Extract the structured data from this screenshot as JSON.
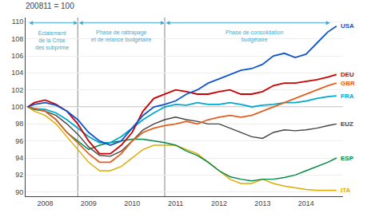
{
  "chart_data": {
    "type": "line",
    "title": "200811 = 100",
    "x": [
      2007.6,
      2007.75,
      2008.0,
      2008.25,
      2008.5,
      2008.75,
      2009.0,
      2009.25,
      2009.5,
      2009.75,
      2010.0,
      2010.25,
      2010.5,
      2010.75,
      2011.0,
      2011.25,
      2011.5,
      2011.75,
      2012.0,
      2012.25,
      2012.5,
      2012.75,
      2013.0,
      2013.25,
      2013.5,
      2013.75,
      2014.0,
      2014.25,
      2014.5,
      2014.7
    ],
    "series": [
      {
        "name": "ITA",
        "color": "#ddaa00",
        "values": [
          100,
          99.5,
          99.0,
          98.0,
          96.5,
          95.0,
          93.5,
          92.5,
          92.5,
          93.0,
          94.0,
          95.0,
          95.5,
          95.5,
          95.5,
          95.0,
          94.5,
          93.5,
          92.5,
          91.5,
          91.0,
          91.0,
          91.5,
          91.0,
          90.7,
          90.5,
          90.3,
          90.2,
          90.2,
          90.2
        ]
      },
      {
        "name": "ESP",
        "color": "#008844",
        "values": [
          100,
          99.7,
          99.5,
          98.5,
          97.0,
          96.0,
          95.0,
          95.5,
          95.8,
          96.0,
          96.2,
          96.2,
          96.0,
          95.8,
          95.5,
          94.8,
          94.3,
          93.5,
          92.5,
          91.8,
          91.5,
          91.3,
          91.5,
          91.5,
          91.7,
          92.0,
          92.5,
          93.0,
          93.5,
          94.0
        ]
      },
      {
        "name": "EUZ",
        "color": "#444444",
        "values": [
          100,
          99.8,
          99.5,
          99.0,
          98.0,
          96.8,
          95.3,
          94.3,
          94.2,
          94.8,
          96.0,
          97.3,
          98.0,
          98.5,
          98.8,
          98.5,
          98.3,
          98.0,
          98.0,
          97.5,
          97.0,
          96.5,
          96.3,
          97.0,
          97.3,
          97.2,
          97.3,
          97.5,
          97.8,
          98.0
        ]
      },
      {
        "name": "FRA",
        "color": "#00aacc",
        "values": [
          100,
          99.8,
          99.7,
          99.3,
          98.5,
          97.5,
          96.5,
          95.8,
          95.8,
          96.5,
          97.5,
          98.5,
          99.3,
          100.0,
          100.3,
          100.2,
          100.5,
          100.3,
          100.3,
          100.5,
          100.3,
          100.0,
          100.2,
          100.3,
          100.5,
          100.5,
          100.7,
          101.0,
          101.2,
          101.3
        ]
      },
      {
        "name": "GBR",
        "color": "#e06020",
        "values": [
          100,
          99.8,
          99.5,
          98.5,
          97.0,
          95.8,
          94.5,
          93.5,
          93.5,
          94.5,
          96.0,
          97.0,
          97.5,
          97.8,
          98.0,
          98.3,
          98.0,
          98.5,
          98.8,
          99.0,
          98.8,
          99.0,
          99.5,
          100.0,
          100.5,
          101.0,
          101.5,
          102.0,
          102.5,
          102.8
        ]
      },
      {
        "name": "DEU",
        "color": "#cc0000",
        "values": [
          100,
          100.5,
          100.8,
          100.3,
          99.5,
          98.0,
          96.0,
          94.5,
          94.5,
          95.5,
          97.0,
          99.5,
          101.0,
          101.5,
          102.0,
          101.8,
          101.5,
          101.5,
          101.8,
          102.0,
          101.5,
          101.5,
          101.8,
          102.5,
          102.8,
          102.8,
          103.0,
          103.2,
          103.5,
          103.8
        ]
      },
      {
        "name": "USA",
        "color": "#1155cc",
        "values": [
          100,
          100.3,
          100.5,
          100.2,
          99.5,
          98.5,
          97.0,
          96.0,
          95.5,
          96.0,
          97.5,
          99.0,
          100.0,
          100.3,
          100.7,
          101.5,
          102.0,
          102.8,
          103.3,
          103.8,
          104.3,
          104.5,
          105.0,
          106.0,
          106.3,
          105.8,
          106.2,
          107.5,
          108.8,
          109.5
        ]
      }
    ],
    "xlim": [
      2007.55,
      2014.85
    ],
    "xticks": [
      2008,
      2009,
      2010,
      2011,
      2012,
      2013,
      2014
    ],
    "ylim": [
      89.5,
      110.5
    ],
    "yticks": [
      90,
      92,
      94,
      96,
      98,
      100,
      102,
      104,
      106,
      108,
      110
    ],
    "grid": true,
    "hline": 100,
    "vlines": [
      2008.75,
      2010.75
    ],
    "annotations": [
      {
        "text": "Éclatement\nde la Crise\ndes subprime",
        "color": "#44aacc"
      },
      {
        "text": "Phase de rattrapage\net de relance budgétaire",
        "color": "#44aacc"
      },
      {
        "text": "Phase de consolidation\nbudgétaire",
        "color": "#44aacc"
      }
    ]
  }
}
